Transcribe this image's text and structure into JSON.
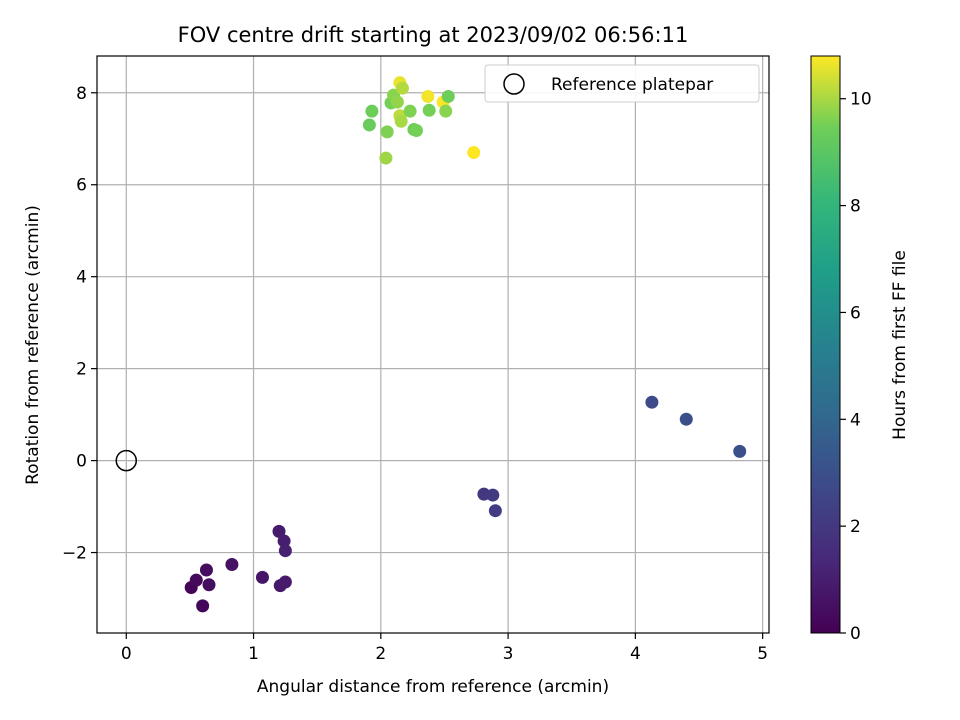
{
  "chart_data": {
    "type": "scatter",
    "title": "FOV centre drift starting at 2023/09/02 06:56:11",
    "xlabel": "Angular distance from reference (arcmin)",
    "ylabel": "Rotation from reference (arcmin)",
    "xlim": [
      -0.23,
      5.05
    ],
    "ylim": [
      -3.75,
      8.8
    ],
    "xticks": [
      0,
      1,
      2,
      3,
      4,
      5
    ],
    "xtick_labels": [
      "0",
      "1",
      "2",
      "3",
      "4",
      "5"
    ],
    "yticks": [
      -2,
      0,
      2,
      4,
      6,
      8
    ],
    "ytick_labels": [
      "−2",
      "0",
      "2",
      "4",
      "6",
      "8"
    ],
    "grid": true,
    "legend": {
      "position": "top-right",
      "entries": [
        "Reference platepar"
      ]
    },
    "reference_point": {
      "x": 0,
      "y": 0
    },
    "colorbar": {
      "label": "Hours from first FF file",
      "colormap": "viridis",
      "range": [
        0,
        10.8
      ],
      "ticks": [
        0,
        2,
        4,
        6,
        8,
        10
      ],
      "tick_labels": [
        "0",
        "2",
        "4",
        "6",
        "8",
        "10"
      ]
    },
    "points": [
      {
        "x": 0.51,
        "y": -2.76,
        "hours": 0.1
      },
      {
        "x": 0.55,
        "y": -2.6,
        "hours": 0.3
      },
      {
        "x": 0.6,
        "y": -3.16,
        "hours": 0.2
      },
      {
        "x": 0.63,
        "y": -2.38,
        "hours": 0.4
      },
      {
        "x": 0.65,
        "y": -2.7,
        "hours": 0.5
      },
      {
        "x": 0.83,
        "y": -2.26,
        "hours": 0.6
      },
      {
        "x": 1.07,
        "y": -2.54,
        "hours": 0.7
      },
      {
        "x": 1.2,
        "y": -1.54,
        "hours": 0.9
      },
      {
        "x": 1.21,
        "y": -2.72,
        "hours": 0.8
      },
      {
        "x": 1.25,
        "y": -2.64,
        "hours": 0.85
      },
      {
        "x": 1.24,
        "y": -1.75,
        "hours": 1.0
      },
      {
        "x": 1.25,
        "y": -1.96,
        "hours": 1.1
      },
      {
        "x": 2.81,
        "y": -0.73,
        "hours": 2.0
      },
      {
        "x": 2.88,
        "y": -0.75,
        "hours": 2.1
      },
      {
        "x": 2.9,
        "y": -1.09,
        "hours": 2.2
      },
      {
        "x": 4.13,
        "y": 1.27,
        "hours": 2.8
      },
      {
        "x": 4.4,
        "y": 0.9,
        "hours": 2.9
      },
      {
        "x": 4.82,
        "y": 0.2,
        "hours": 3.0
      },
      {
        "x": 1.91,
        "y": 7.3,
        "hours": 9.3
      },
      {
        "x": 1.93,
        "y": 7.6,
        "hours": 9.4
      },
      {
        "x": 2.04,
        "y": 6.58,
        "hours": 9.9
      },
      {
        "x": 2.05,
        "y": 7.15,
        "hours": 9.6
      },
      {
        "x": 2.08,
        "y": 7.78,
        "hours": 9.5
      },
      {
        "x": 2.1,
        "y": 7.95,
        "hours": 9.7
      },
      {
        "x": 2.13,
        "y": 7.8,
        "hours": 9.8
      },
      {
        "x": 2.15,
        "y": 7.5,
        "hours": 10.2
      },
      {
        "x": 2.15,
        "y": 8.22,
        "hours": 10.6
      },
      {
        "x": 2.17,
        "y": 8.1,
        "hours": 10.1
      },
      {
        "x": 2.16,
        "y": 7.38,
        "hours": 10.0
      },
      {
        "x": 2.23,
        "y": 7.6,
        "hours": 9.6
      },
      {
        "x": 2.26,
        "y": 7.2,
        "hours": 9.4
      },
      {
        "x": 2.28,
        "y": 7.18,
        "hours": 9.5
      },
      {
        "x": 2.37,
        "y": 7.92,
        "hours": 10.7
      },
      {
        "x": 2.38,
        "y": 7.62,
        "hours": 9.5
      },
      {
        "x": 2.49,
        "y": 7.8,
        "hours": 10.75
      },
      {
        "x": 2.51,
        "y": 7.6,
        "hours": 9.7
      },
      {
        "x": 2.53,
        "y": 7.92,
        "hours": 9.4
      },
      {
        "x": 2.73,
        "y": 6.7,
        "hours": 10.8
      }
    ]
  }
}
